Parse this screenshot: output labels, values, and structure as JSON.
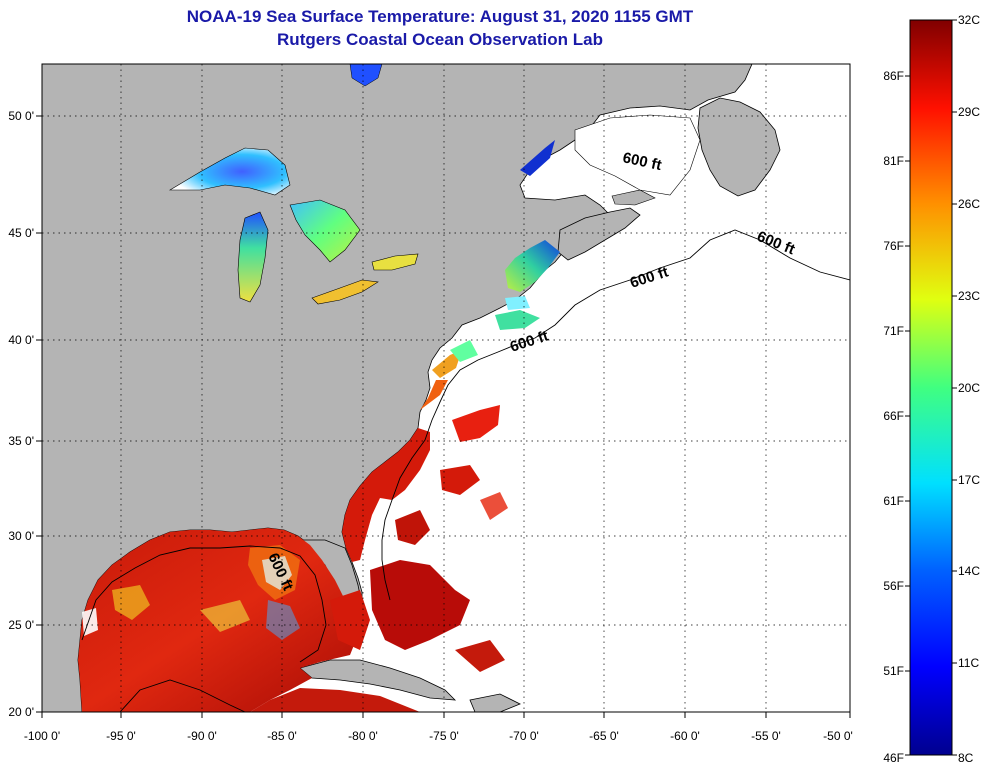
{
  "title": {
    "line1": "NOAA-19 Sea Surface Temperature:  August 31, 2020 1155 GMT",
    "line2": "Rutgers Coastal Ocean Observation Lab"
  },
  "axes": {
    "longitude_ticks": [
      "-100 0'",
      "-95 0'",
      "-90 0'",
      "-85 0'",
      "-80 0'",
      "-75 0'",
      "-70 0'",
      "-65 0'",
      "-60 0'",
      "-55 0'",
      "-50 0'"
    ],
    "latitude_ticks": [
      "50 0'",
      "45 0'",
      "40 0'",
      "35 0'",
      "30 0'",
      "25 0'",
      "20 0'"
    ]
  },
  "contour_labels": [
    "600 ft",
    "600 ft",
    "600 ft",
    "600 ft",
    "600 ft"
  ],
  "colorbar": {
    "celsius": [
      "32C",
      "29C",
      "26C",
      "23C",
      "20C",
      "17C",
      "14C",
      "11C",
      "8C"
    ],
    "fahrenheit": [
      "86F",
      "81F",
      "76F",
      "71F",
      "66F",
      "61F",
      "56F",
      "51F",
      "46F"
    ]
  },
  "colors": {
    "land": "#b4b4b4",
    "ocean_no_data": "#ffffff",
    "title": "#1a1aa8",
    "warm_water": "#d41a0a",
    "hot_water": "#a00808"
  }
}
